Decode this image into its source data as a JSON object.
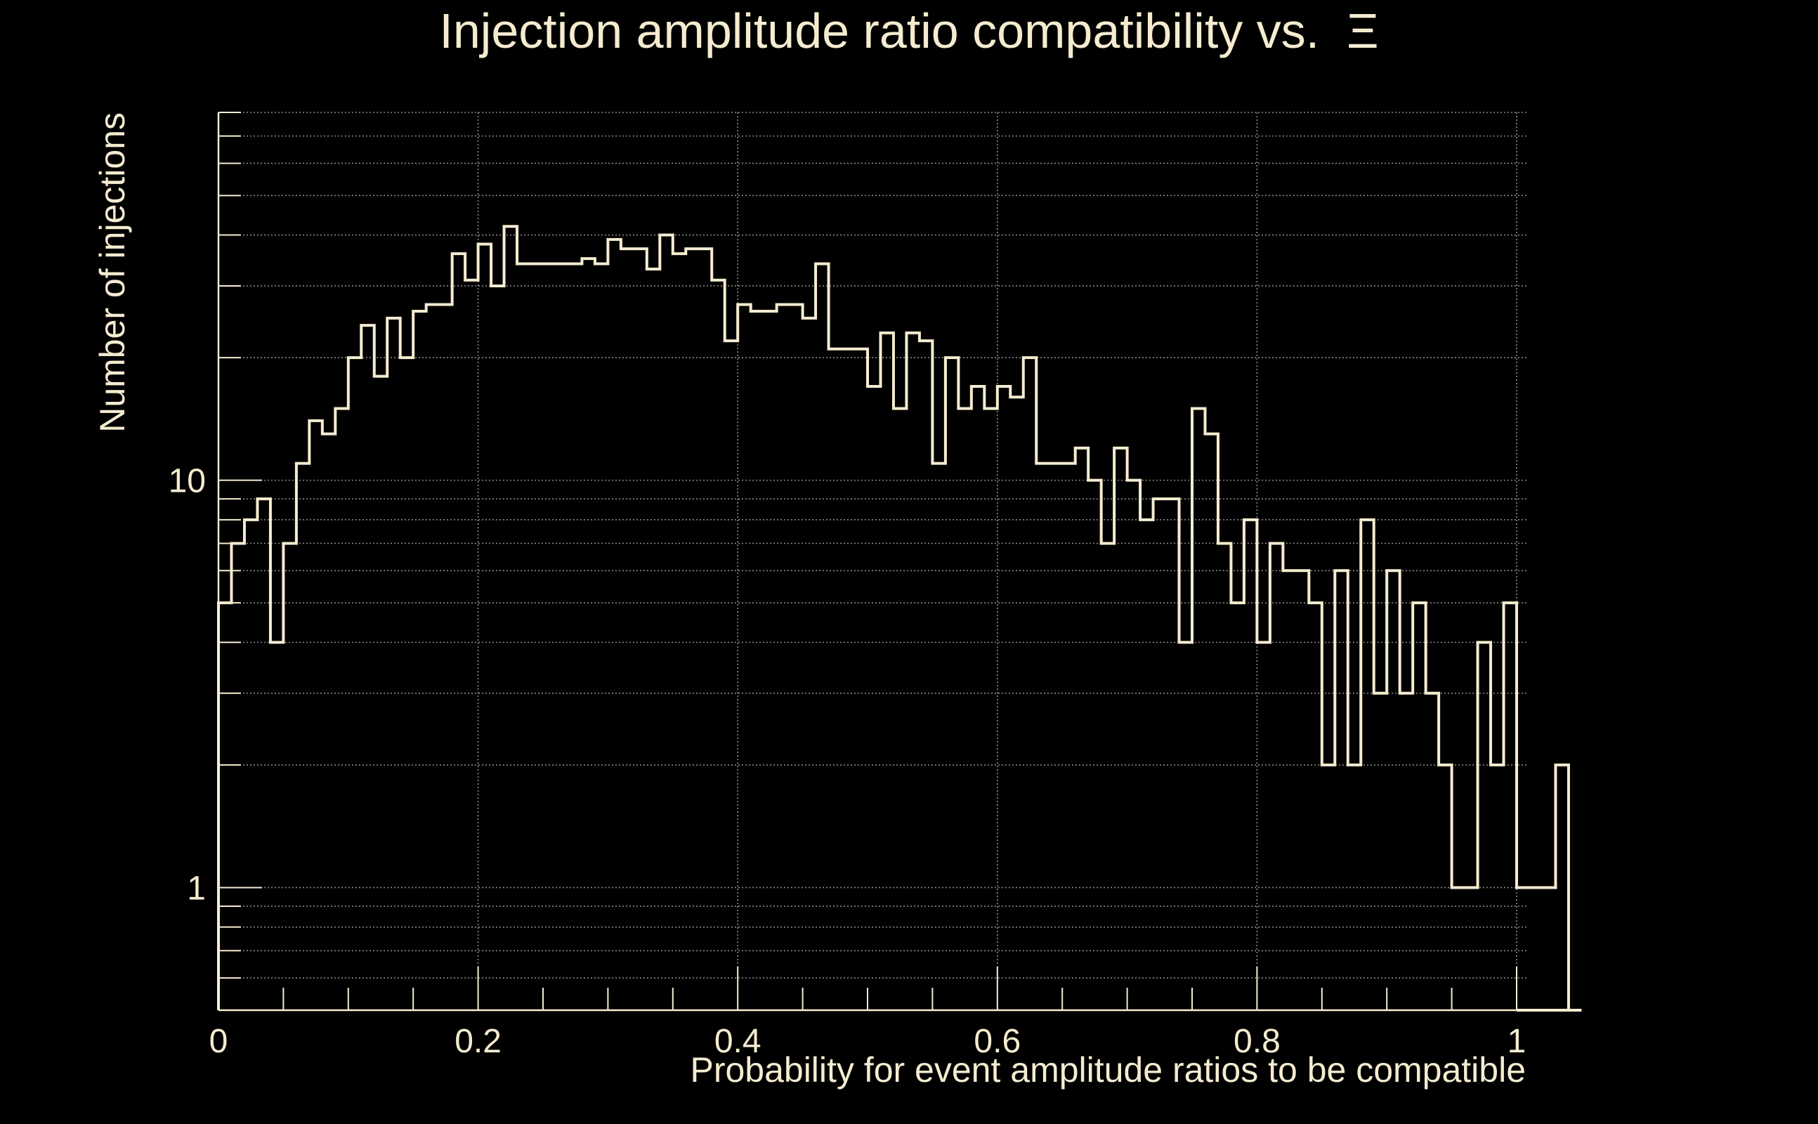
{
  "chart_data": {
    "type": "histogram",
    "title": "Injection amplitude ratio compatibility vs.  Ξ",
    "xlabel": "Probability for event amplitude ratios to be compatible",
    "ylabel": "Number of injections",
    "xlim": [
      0,
      1
    ],
    "ylim": [
      0.5,
      80
    ],
    "y_scale": "log",
    "grid": true,
    "x_ticks": [
      0,
      0.2,
      0.4,
      0.6,
      0.8,
      1
    ],
    "x_tick_labels": [
      "0",
      "0.2",
      "0.4",
      "0.6",
      "0.8",
      "1"
    ],
    "y_ticks": [
      1,
      10
    ],
    "y_tick_labels": [
      "1",
      "10"
    ],
    "bin_width": 0.01,
    "values": [
      5,
      7,
      8,
      9,
      4,
      7,
      11,
      14,
      13,
      15,
      20,
      24,
      18,
      25,
      20,
      26,
      27,
      27,
      36,
      31,
      38,
      30,
      42,
      34,
      34,
      34,
      34,
      34,
      35,
      34,
      39,
      37,
      37,
      33,
      40,
      36,
      37,
      37,
      31,
      22,
      27,
      26,
      26,
      27,
      27,
      25,
      34,
      21,
      21,
      21,
      17,
      23,
      15,
      23,
      22,
      11,
      20,
      15,
      17,
      15,
      17,
      16,
      20,
      11,
      11,
      11,
      12,
      10,
      7,
      12,
      10,
      8,
      9,
      9,
      4,
      15,
      13,
      7,
      5,
      8,
      4,
      7,
      6,
      6,
      5,
      2,
      6,
      2,
      8,
      3,
      6,
      3,
      5,
      3,
      2,
      1,
      1,
      4,
      2,
      5,
      1,
      1,
      1,
      2,
      0
    ],
    "colors": {
      "background": "#000000",
      "foreground": "#f5ecd0",
      "grid": "#8a8a8a"
    }
  }
}
